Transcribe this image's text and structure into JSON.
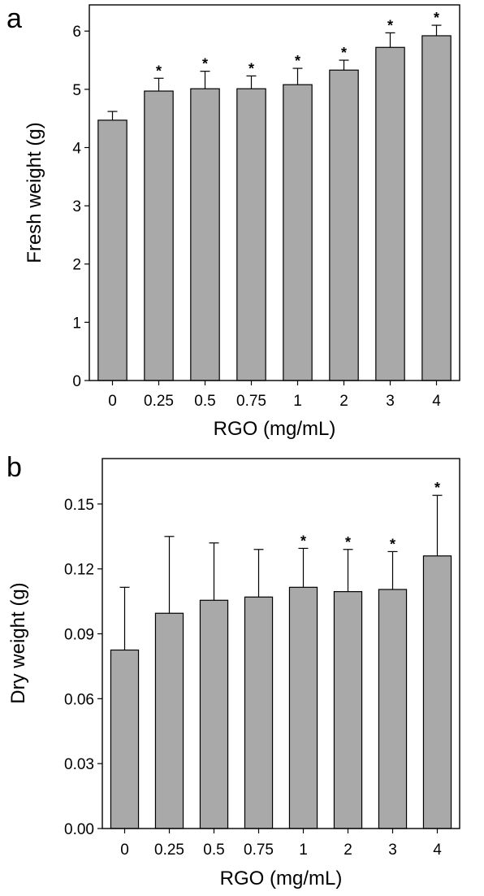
{
  "chart_data": [
    {
      "type": "bar",
      "panel": "a",
      "categories": [
        "0",
        "0.25",
        "0.5",
        "0.75",
        "1",
        "2",
        "3",
        "4"
      ],
      "values": [
        4.47,
        4.97,
        5.01,
        5.01,
        5.08,
        5.33,
        5.72,
        5.92
      ],
      "errors": [
        0.15,
        0.22,
        0.3,
        0.22,
        0.28,
        0.17,
        0.25,
        0.18
      ],
      "significance": [
        "",
        "*",
        "*",
        "*",
        "*",
        "*",
        "*",
        "*"
      ],
      "title": "",
      "xlabel": "RGO (mg/mL)",
      "ylabel": "Fresh weight (g)",
      "ylim": [
        0,
        6.45
      ],
      "yticks": [
        0,
        1,
        2,
        3,
        4,
        5,
        6
      ],
      "ytick_labels": [
        "0",
        "1",
        "2",
        "3",
        "4",
        "5",
        "6"
      ],
      "grid": false,
      "bar_color": "#a9a9a9"
    },
    {
      "type": "bar",
      "panel": "b",
      "categories": [
        "0",
        "0.25",
        "0.5",
        "0.75",
        "1",
        "2",
        "3",
        "4"
      ],
      "values": [
        0.0825,
        0.0995,
        0.1055,
        0.107,
        0.1115,
        0.1095,
        0.1105,
        0.126
      ],
      "errors": [
        0.029,
        0.0355,
        0.0265,
        0.022,
        0.018,
        0.0195,
        0.0175,
        0.028
      ],
      "significance": [
        "",
        "",
        "",
        "",
        "*",
        "*",
        "*",
        "*"
      ],
      "title": "",
      "xlabel": "RGO (mg/mL)",
      "ylabel": "Dry weight (g)",
      "ylim": [
        0,
        0.171
      ],
      "yticks": [
        0,
        0.03,
        0.06,
        0.09,
        0.12,
        0.15
      ],
      "ytick_labels": [
        "0.00",
        "0.03",
        "0.06",
        "0.09",
        "0.12",
        "0.15"
      ],
      "grid": false,
      "bar_color": "#a9a9a9"
    }
  ]
}
